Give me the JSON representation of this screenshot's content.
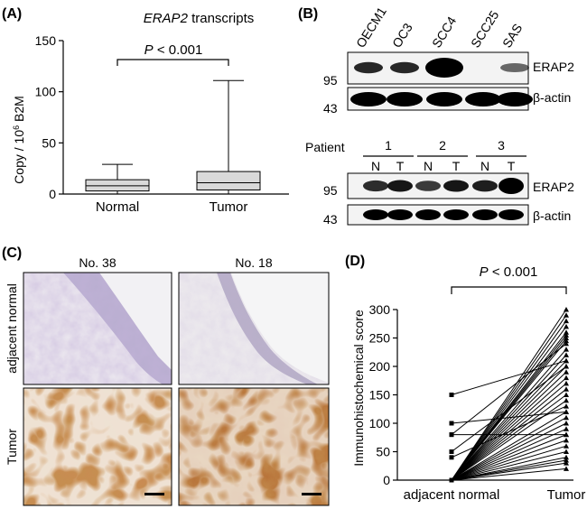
{
  "panels": {
    "A": {
      "label": "(A)",
      "title": "ERAP2",
      "title_suffix": " transcripts",
      "pvalue_p": "P",
      "pvalue_rest": " < 0.001",
      "ylabel_main": "Copy / 10",
      "ylabel_sup": "6",
      "ylabel_tail": " B2M",
      "chart_data": {
        "type": "box",
        "categories": [
          "Normal",
          "Tumor"
        ],
        "ylim": [
          0,
          150
        ],
        "yticks": [
          0,
          50,
          100,
          150
        ],
        "boxes": [
          {
            "name": "Normal",
            "whisker_low": 0,
            "q1": 3,
            "median": 8,
            "q3": 14,
            "whisker_high": 29
          },
          {
            "name": "Tumor",
            "whisker_low": 0,
            "q1": 4,
            "median": 11,
            "q3": 22,
            "whisker_high": 111
          }
        ],
        "xlabel": "",
        "ylabel": "Copy / 10^6 B2M",
        "box_color": "#d9d9d9"
      }
    },
    "B": {
      "label": "(B)",
      "cell_lines": [
        "OECM1",
        "OC3",
        "SCC4",
        "SCC25",
        "SAS"
      ],
      "patient_label": "Patient",
      "patients": [
        "1",
        "2",
        "3"
      ],
      "nt": [
        "N",
        "T",
        "N",
        "T",
        "N",
        "T"
      ],
      "markers": {
        "mw95": "95",
        "mw43": "43"
      },
      "bands": {
        "erap2": "ERAP2",
        "actin": "β-actin"
      },
      "erap2_intensity_cells": [
        0.75,
        0.75,
        1.0,
        0.0,
        0.35
      ],
      "erap2_intensity_patients": [
        0.7,
        0.85,
        0.6,
        0.85,
        0.8,
        1.0
      ]
    },
    "C": {
      "label": "(C)",
      "cases": [
        "No. 38",
        "No. 18"
      ],
      "rows": [
        "adjacent normal",
        "Tumor"
      ]
    },
    "D": {
      "label": "(D)",
      "pvalue_p": "P",
      "pvalue_rest": " < 0.001",
      "chart_data": {
        "type": "paired-line",
        "categories": [
          "adjacent normal",
          "Tumor"
        ],
        "ylabel": "Immunohistochemical  score",
        "xlabel": "",
        "ylim": [
          0,
          300
        ],
        "yticks": [
          0,
          50,
          100,
          150,
          200,
          250,
          300
        ],
        "normal_values": [
          150,
          100,
          80,
          80,
          50,
          40,
          0,
          0,
          0,
          0,
          0,
          0,
          0,
          0,
          0,
          0,
          0,
          0,
          0,
          0,
          0,
          0,
          0,
          0,
          0,
          0,
          0,
          0,
          0,
          0,
          0,
          0,
          0,
          0,
          0,
          0
        ],
        "tumor_values": [
          210,
          120,
          80,
          240,
          200,
          130,
          300,
          290,
          280,
          270,
          260,
          255,
          250,
          245,
          230,
          220,
          210,
          200,
          190,
          180,
          170,
          160,
          150,
          140,
          120,
          110,
          100,
          90,
          80,
          70,
          60,
          50,
          40,
          35,
          30,
          20
        ]
      }
    }
  }
}
